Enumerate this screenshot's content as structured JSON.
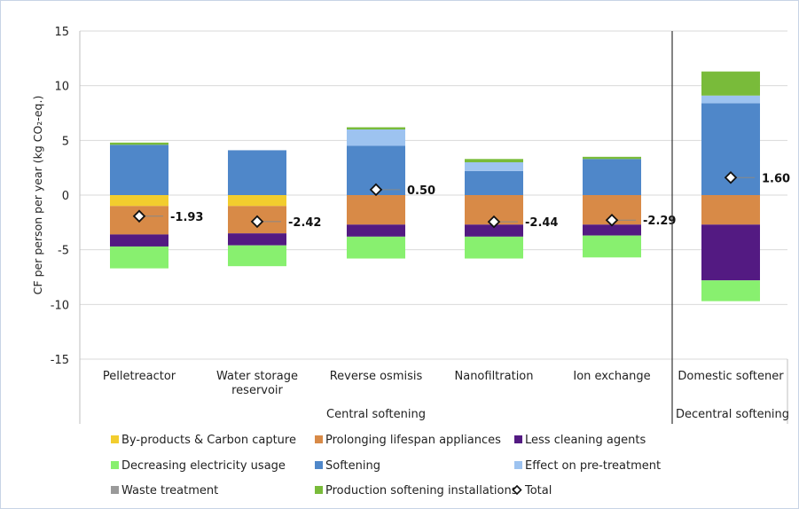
{
  "chart_data": {
    "type": "bar",
    "stacked": true,
    "ylabel": "CF per person per year (kg CO₂-eq.)",
    "ylim": [
      -15,
      15
    ],
    "yticks": [
      -15,
      -10,
      -5,
      0,
      5,
      10,
      15
    ],
    "grid": true,
    "legend_position": "bottom",
    "categories": [
      "Pelletreactor",
      "Water storage reservoir",
      "Reverse osmisis",
      "Nanofiltration",
      "Ion exchange",
      "Domestic softener"
    ],
    "category_lines": [
      [
        "Pelletreactor"
      ],
      [
        "Water storage",
        "reservoir"
      ],
      [
        "Reverse osmisis"
      ],
      [
        "Nanofiltration"
      ],
      [
        "Ion exchange"
      ],
      [
        "Domestic softener"
      ]
    ],
    "groups": [
      {
        "label": "Central softening",
        "categories": [
          "Pelletreactor",
          "Water storage reservoir",
          "Reverse osmisis",
          "Nanofiltration",
          "Ion exchange"
        ]
      },
      {
        "label": "Decentral softening",
        "categories": [
          "Domestic softener"
        ]
      }
    ],
    "series": [
      {
        "name": "By-products & Carbon capture",
        "color": "#f2cd2e",
        "values": [
          -1.0,
          -1.0,
          0,
          0,
          0,
          0
        ]
      },
      {
        "name": "Prolonging lifespan appliances",
        "color": "#d88a47",
        "values": [
          -2.6,
          -2.5,
          -2.7,
          -2.7,
          -2.7,
          -2.7
        ]
      },
      {
        "name": "Less cleaning agents",
        "color": "#531a82",
        "values": [
          -1.1,
          -1.1,
          -1.1,
          -1.1,
          -1.0,
          -5.1
        ]
      },
      {
        "name": "Decreasing electricity usage",
        "color": "#88f06f",
        "values": [
          -2.0,
          -1.9,
          -2.0,
          -2.0,
          -2.0,
          -1.9
        ]
      },
      {
        "name": "Softening",
        "color": "#4f87c9",
        "values": [
          4.6,
          4.1,
          4.5,
          2.2,
          3.3,
          8.4
        ]
      },
      {
        "name": "Effect on pre-treatment",
        "color": "#9dc3f0",
        "values": [
          0,
          0,
          1.5,
          0.8,
          0,
          0.7
        ]
      },
      {
        "name": "Waste treatment",
        "color": "#9a9a9a",
        "values": [
          0,
          0,
          0,
          0,
          0,
          0
        ]
      },
      {
        "name": "Production softening installations",
        "color": "#79bb3a",
        "values": [
          0.2,
          0,
          0.2,
          0.3,
          0.2,
          2.2
        ]
      }
    ],
    "total": {
      "name": "Total",
      "values": [
        -1.93,
        -2.42,
        0.5,
        -2.44,
        -2.29,
        1.6
      ],
      "labels": [
        "-1.93",
        "-2.42",
        "0.50",
        "-2.44",
        "-2.29",
        "1.60"
      ]
    }
  }
}
